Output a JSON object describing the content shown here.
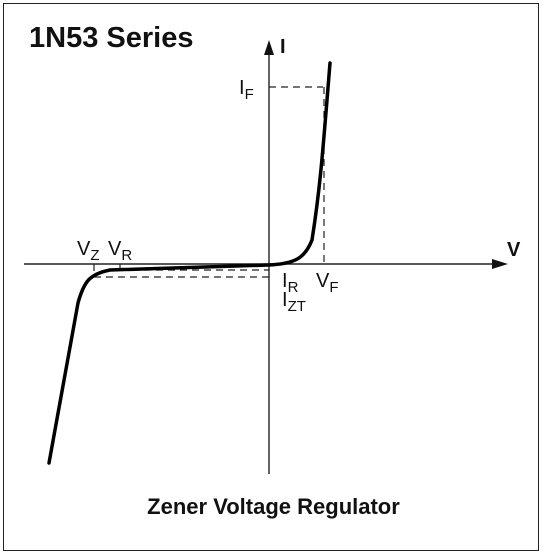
{
  "title": "1N53 Series",
  "caption": "Zener Voltage Regulator",
  "axes": {
    "y_label": "I",
    "x_label": "V"
  },
  "markers": {
    "i_f": {
      "main": "I",
      "sub": "F"
    },
    "v_f": {
      "main": "V",
      "sub": "F"
    },
    "v_z": {
      "main": "V",
      "sub": "Z"
    },
    "v_r": {
      "main": "V",
      "sub": "R"
    },
    "i_r": {
      "main": "I",
      "sub": "R"
    },
    "i_zt": {
      "main": "I",
      "sub": "ZT"
    }
  },
  "colors": {
    "curve": "#000000",
    "axes": "#222222",
    "dashes": "#222222"
  }
}
